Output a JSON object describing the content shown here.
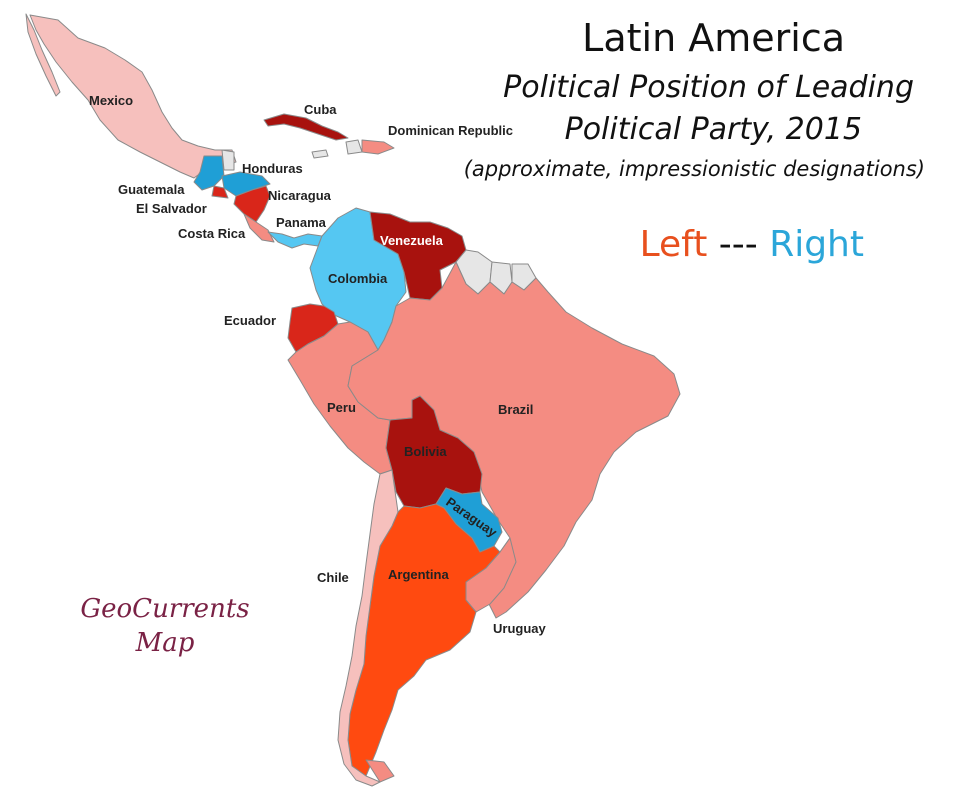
{
  "title": {
    "line1": "Latin America",
    "line2": "Political Position of Leading",
    "line3": "Political Party, 2015",
    "note": "(approximate, impressionistic designations)"
  },
  "scale": {
    "left_label": "Left",
    "separator": "---",
    "right_label": "Right",
    "left_color": "#e8501e",
    "right_color": "#2ba6d9"
  },
  "credit": {
    "line1": "GeoCurrents",
    "line2": "Map",
    "color": "#7a2245"
  },
  "legend_colors": {
    "strong_left": "#a8120e",
    "left": "#d9261a",
    "left_orange": "#ff4a10",
    "center_left": "#f48c82",
    "mild_left": "#f6c0bd",
    "right": "#1f9fd6",
    "strong_right": "#55c7f2",
    "no_data": "#e6e6e6"
  },
  "countries": {
    "mexico": "Mexico",
    "cuba": "Cuba",
    "dominican_republic": "Dominican Republic",
    "honduras": "Honduras",
    "guatemala": "Guatemala",
    "el_salvador": "El Salvador",
    "nicaragua": "Nicaragua",
    "costa_rica": "Costa Rica",
    "panama": "Panama",
    "venezuela": "Venezuela",
    "colombia": "Colombia",
    "ecuador": "Ecuador",
    "peru": "Peru",
    "brazil": "Brazil",
    "bolivia": "Bolivia",
    "paraguay": "Paraguay",
    "chile": "Chile",
    "argentina": "Argentina",
    "uruguay": "Uruguay"
  }
}
